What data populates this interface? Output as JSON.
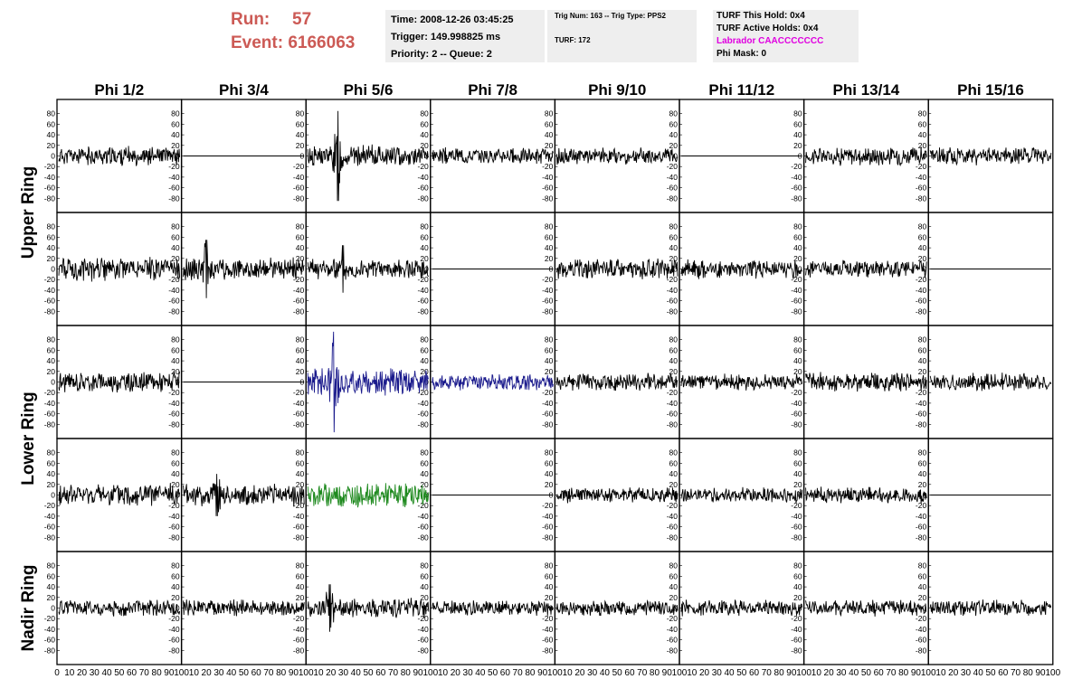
{
  "run": {
    "run_label": "Run:",
    "run_value": "57",
    "event_label": "Event:",
    "event_value": "6166063"
  },
  "info_time": {
    "time": "Time: 2008-12-26 03:45:25",
    "trigger": "Trigger: 149.998825 ms",
    "priority": "Priority: 2 -- Queue: 2"
  },
  "info_trig": {
    "trig": "Trig Num: 163 -- Trig Type: PPS2",
    "turf": "TURF: 172"
  },
  "info_turf": {
    "this_hold": "TURF This Hold: 0x4",
    "active_holds": "TURF Active Holds: 0x4",
    "labrador": "Labrador CAACCCCCCC",
    "phi_mask": "Phi Mask: 0"
  },
  "colors": {
    "run_text": "#cc5a55",
    "labrador": "#e000e0",
    "trace": "#000000",
    "trace_blue": "#1a1a8c",
    "trace_green": "#1f8a1f"
  },
  "chart_data": {
    "type": "line",
    "columns": [
      "Phi 1/2",
      "Phi 3/4",
      "Phi 5/6",
      "Phi 7/8",
      "Phi 9/10",
      "Phi 11/12",
      "Phi 13/14",
      "Phi 15/16"
    ],
    "row_groups": [
      {
        "label": "Upper Ring",
        "rows": 2
      },
      {
        "label": "Lower Ring",
        "rows": 2
      },
      {
        "label": "Nadir Ring",
        "rows": 1
      }
    ],
    "ylim": [
      -100,
      100
    ],
    "xlim": [
      0,
      100
    ],
    "y_ticks": [
      80,
      60,
      40,
      20,
      0,
      -20,
      -40,
      -60,
      -80
    ],
    "y_tick_labels": [
      "80",
      "60",
      "40",
      "20",
      "0",
      "-20",
      "-40",
      "-60",
      "-80"
    ],
    "x_tick_labels": [
      "0",
      "10",
      "20",
      "30",
      "40",
      "50",
      "60",
      "70",
      "80",
      "90",
      "100"
    ],
    "panels": [
      {
        "row": 0,
        "col": 0,
        "state": "active",
        "amp": 14,
        "spike": 0,
        "seed": 11
      },
      {
        "row": 0,
        "col": 1,
        "state": "flat"
      },
      {
        "row": 0,
        "col": 2,
        "state": "active",
        "amp": 16,
        "spike": 85,
        "seed": 13
      },
      {
        "row": 0,
        "col": 3,
        "state": "active",
        "amp": 12,
        "spike": 0,
        "seed": 14
      },
      {
        "row": 0,
        "col": 4,
        "state": "active",
        "amp": 12,
        "spike": 0,
        "seed": 15
      },
      {
        "row": 0,
        "col": 5,
        "state": "flat"
      },
      {
        "row": 0,
        "col": 6,
        "state": "active",
        "amp": 14,
        "spike": 0,
        "seed": 17
      },
      {
        "row": 0,
        "col": 7,
        "state": "active",
        "amp": 13,
        "spike": 0,
        "seed": 18
      },
      {
        "row": 1,
        "col": 0,
        "state": "active",
        "amp": 18,
        "spike": 0,
        "seed": 21
      },
      {
        "row": 1,
        "col": 1,
        "state": "active",
        "amp": 16,
        "spike": 55,
        "seed": 22
      },
      {
        "row": 1,
        "col": 2,
        "state": "active",
        "amp": 15,
        "spike": 45,
        "seed": 23
      },
      {
        "row": 1,
        "col": 3,
        "state": "flat"
      },
      {
        "row": 1,
        "col": 4,
        "state": "active",
        "amp": 15,
        "spike": 0,
        "seed": 25
      },
      {
        "row": 1,
        "col": 5,
        "state": "active",
        "amp": 14,
        "spike": 0,
        "seed": 26
      },
      {
        "row": 1,
        "col": 6,
        "state": "active",
        "amp": 13,
        "spike": 0,
        "seed": 27
      },
      {
        "row": 1,
        "col": 7,
        "state": "flat"
      },
      {
        "row": 2,
        "col": 0,
        "state": "active",
        "amp": 15,
        "spike": 0,
        "seed": 31
      },
      {
        "row": 2,
        "col": 1,
        "state": "flat"
      },
      {
        "row": 2,
        "col": 2,
        "state": "active",
        "amp": 20,
        "spike": 95,
        "seed": 33,
        "color": "trace_blue"
      },
      {
        "row": 2,
        "col": 3,
        "state": "active",
        "amp": 12,
        "spike": 0,
        "seed": 34,
        "color": "trace_blue"
      },
      {
        "row": 2,
        "col": 4,
        "state": "active",
        "amp": 13,
        "spike": 0,
        "seed": 35
      },
      {
        "row": 2,
        "col": 5,
        "state": "active",
        "amp": 12,
        "spike": 0,
        "seed": 36
      },
      {
        "row": 2,
        "col": 6,
        "state": "active",
        "amp": 14,
        "spike": 0,
        "seed": 37
      },
      {
        "row": 2,
        "col": 7,
        "state": "active",
        "amp": 13,
        "spike": 0,
        "seed": 38
      },
      {
        "row": 3,
        "col": 0,
        "state": "active",
        "amp": 17,
        "spike": 0,
        "seed": 41
      },
      {
        "row": 3,
        "col": 1,
        "state": "active",
        "amp": 16,
        "spike": 40,
        "seed": 42
      },
      {
        "row": 3,
        "col": 2,
        "state": "active",
        "amp": 18,
        "spike": 0,
        "seed": 43,
        "color": "trace_green"
      },
      {
        "row": 3,
        "col": 3,
        "state": "flat"
      },
      {
        "row": 3,
        "col": 4,
        "state": "active",
        "amp": 12,
        "spike": 0,
        "seed": 45
      },
      {
        "row": 3,
        "col": 5,
        "state": "active",
        "amp": 11,
        "spike": 0,
        "seed": 46
      },
      {
        "row": 3,
        "col": 6,
        "state": "active",
        "amp": 12,
        "spike": 0,
        "seed": 47
      },
      {
        "row": 3,
        "col": 7,
        "state": "flat"
      },
      {
        "row": 4,
        "col": 0,
        "state": "active",
        "amp": 12,
        "spike": 0,
        "seed": 51
      },
      {
        "row": 4,
        "col": 1,
        "state": "active",
        "amp": 12,
        "spike": 0,
        "seed": 52
      },
      {
        "row": 4,
        "col": 2,
        "state": "active",
        "amp": 14,
        "spike": 45,
        "seed": 53
      },
      {
        "row": 4,
        "col": 3,
        "state": "active",
        "amp": 11,
        "spike": 0,
        "seed": 54
      },
      {
        "row": 4,
        "col": 4,
        "state": "active",
        "amp": 11,
        "spike": 0,
        "seed": 55
      },
      {
        "row": 4,
        "col": 5,
        "state": "active",
        "amp": 12,
        "spike": 0,
        "seed": 56
      },
      {
        "row": 4,
        "col": 6,
        "state": "active",
        "amp": 12,
        "spike": 0,
        "seed": 57
      },
      {
        "row": 4,
        "col": 7,
        "state": "active",
        "amp": 12,
        "spike": 0,
        "seed": 58
      }
    ]
  }
}
